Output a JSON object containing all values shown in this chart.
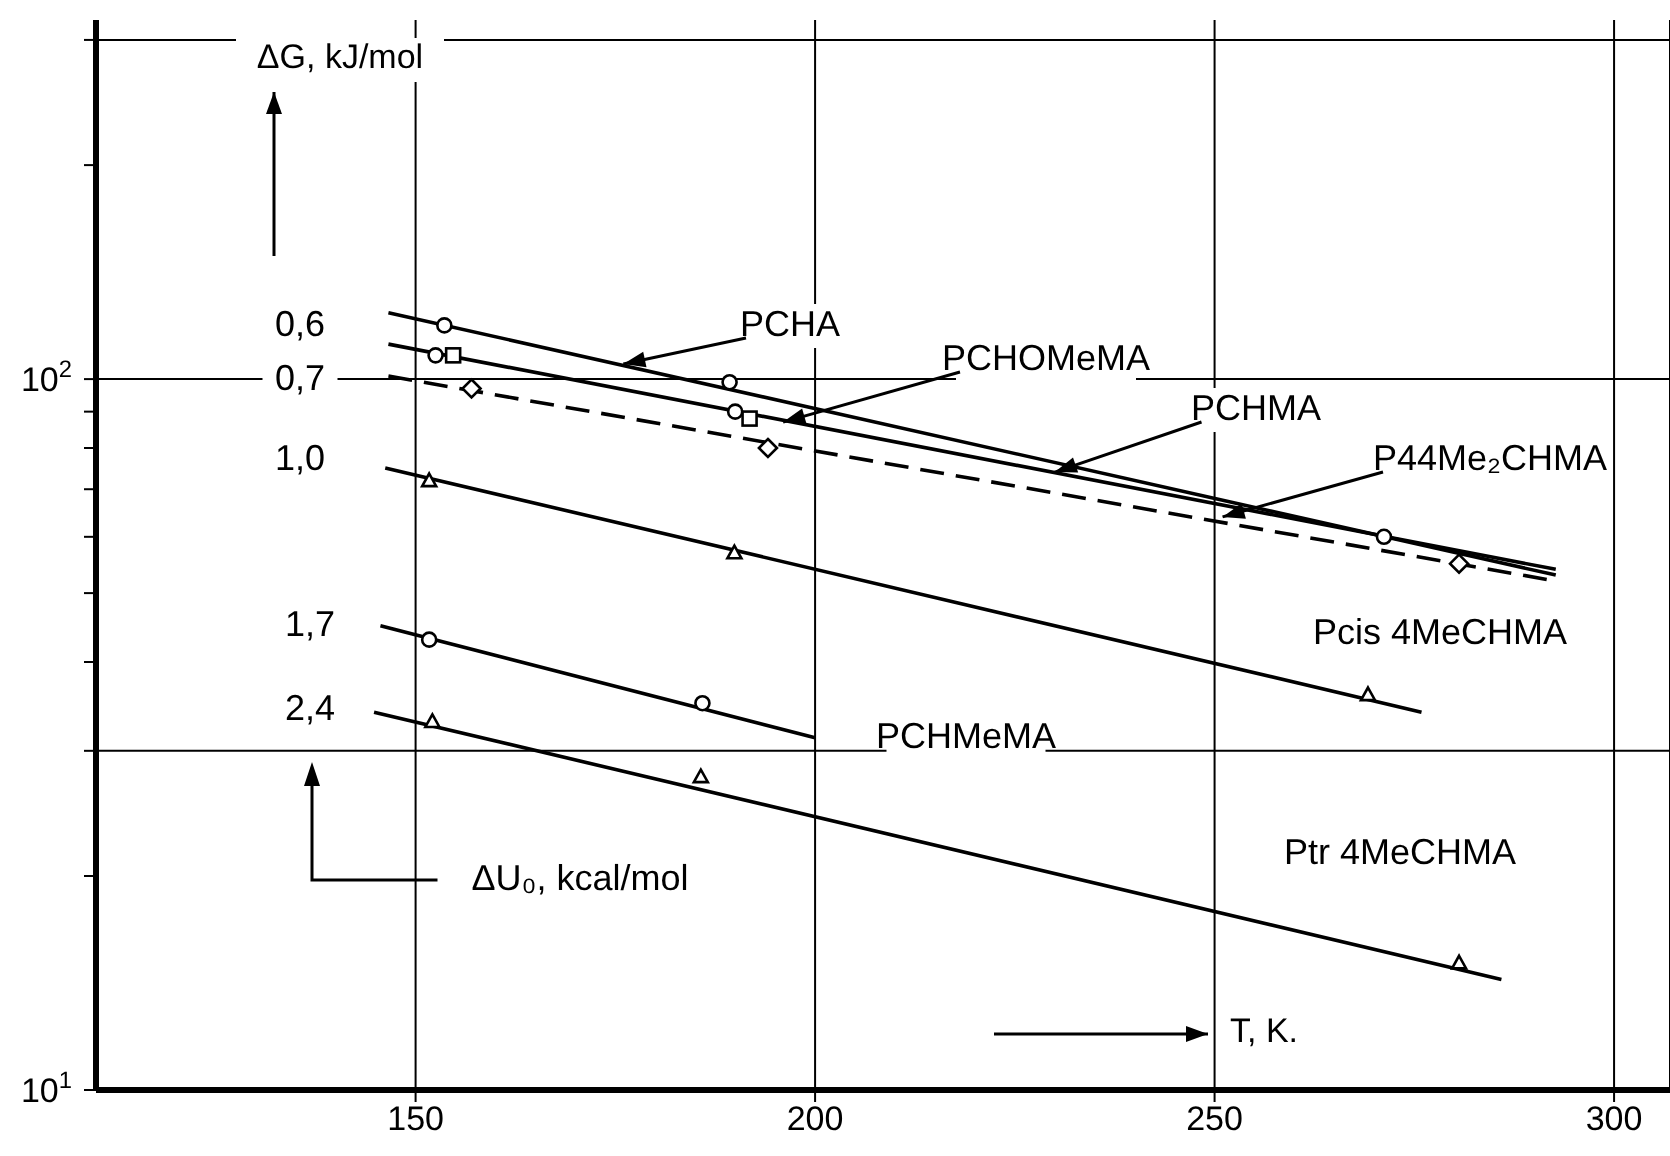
{
  "chart_data": {
    "type": "line",
    "xlabel": "T, K.",
    "ylabel": "ΔG, kJ/mol",
    "annotations": [
      {
        "text": "PCHA",
        "x": 176,
        "y": 105
      },
      {
        "text": "PCHOMeMA",
        "x": 196,
        "y": 87
      },
      {
        "text": "PCHMA",
        "x": 230,
        "y": 74
      },
      {
        "text": "P44Me₂CHMA",
        "x": 251,
        "y": 64
      },
      "Pcis 4MeCHMA",
      "PCHMeMA",
      "Ptr 4MeCHMA",
      "0,6",
      "0,7",
      "1,0",
      "1,7",
      "2,4",
      "ΔU₀, kcal/mol"
    ],
    "xlim": [
      110,
      307
    ],
    "xticks": [
      150,
      200,
      250,
      300
    ],
    "ylim": [
      10,
      320
    ],
    "log": "y",
    "yticks": [
      {
        "value": 10,
        "label": "10$^{1}$"
      },
      {
        "value": 20,
        "label": null
      },
      {
        "value": 30,
        "label": null
      },
      {
        "value": 40,
        "label": null
      },
      {
        "value": 50,
        "label": null
      },
      {
        "value": 60,
        "label": null
      },
      {
        "value": 70,
        "label": null
      },
      {
        "value": 80,
        "label": null
      },
      {
        "value": 90,
        "label": null
      },
      {
        "value": 100,
        "label": "10$^{2}$"
      },
      {
        "value": 200,
        "label": null
      },
      {
        "value": 300,
        "label": null
      }
    ],
    "grid": "x",
    "ref_lines": [
      {
        "axis": "y",
        "value": 30,
        "color": "#000000"
      },
      {
        "axis": "y",
        "value": 100,
        "color": "#000000"
      },
      {
        "axis": "y",
        "value": 300,
        "color": "#000000"
      }
    ],
    "series": [
      {
        "type": "line",
        "x": [
          146.6,
          292.7
        ],
        "values": [
          124,
          53
        ],
        "color": "#000000",
        "marker": "none",
        "line_style": "solid"
      },
      {
        "type": "scatter",
        "x": [
          153.6,
          189.3
        ],
        "values": [
          119,
          99
        ],
        "color": "#000000",
        "marker": "circle"
      },
      {
        "type": "line",
        "x": [
          146.6,
          292.7
        ],
        "values": [
          112,
          54
        ],
        "color": "#000000",
        "marker": "none",
        "line_style": "solid"
      },
      {
        "type": "scatter",
        "x": [
          152.5,
          190,
          271.2
        ],
        "values": [
          108,
          90,
          60
        ],
        "color": "#000000",
        "marker": "circle"
      },
      {
        "type": "scatter",
        "x": [
          154.7,
          191.8
        ],
        "values": [
          108,
          88
        ],
        "color": "#000000",
        "marker": "square"
      },
      {
        "type": "line",
        "x": [
          146.6,
          292.7
        ],
        "values": [
          101,
          52
        ],
        "color": "#000000",
        "marker": "none",
        "line_style": "dashed"
      },
      {
        "type": "scatter",
        "x": [
          157,
          194.1,
          280.6
        ],
        "values": [
          97,
          80,
          55
        ],
        "color": "#000000",
        "marker": "diamond"
      },
      {
        "type": "line",
        "x": [
          146.2,
          275.9
        ],
        "values": [
          75,
          34
        ],
        "color": "#000000",
        "marker": "none",
        "line_style": "solid"
      },
      {
        "type": "scatter",
        "x": [
          151.7,
          189.9,
          269.2
        ],
        "values": [
          72,
          57,
          36
        ],
        "color": "#000000",
        "marker": "triangle"
      },
      {
        "type": "line",
        "x": [
          145.6,
          200
        ],
        "values": [
          45,
          31.3
        ],
        "color": "#000000",
        "marker": "none",
        "line_style": "solid"
      },
      {
        "type": "scatter",
        "x": [
          151.7,
          185.9
        ],
        "values": [
          43,
          35
        ],
        "color": "#000000",
        "marker": "circle"
      },
      {
        "type": "line",
        "x": [
          144.8,
          285.9
        ],
        "values": [
          34,
          14.3
        ],
        "color": "#000000",
        "marker": "none",
        "line_style": "solid"
      },
      {
        "type": "scatter",
        "x": [
          152.1,
          185.7,
          280.6
        ],
        "values": [
          33,
          27.6,
          15.1
        ],
        "color": "#000000",
        "marker": "triangle"
      }
    ]
  }
}
